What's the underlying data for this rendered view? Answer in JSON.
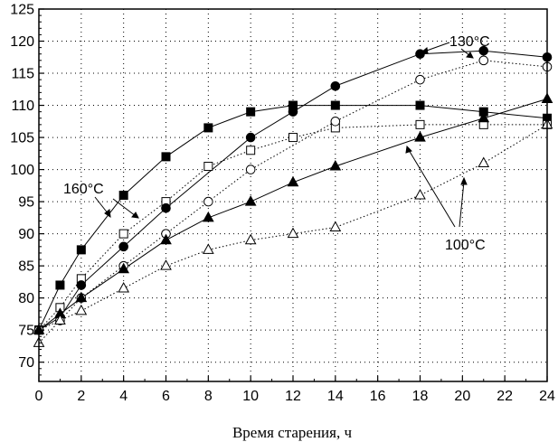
{
  "chart_data": {
    "type": "scatter",
    "title": "",
    "xlabel": "Время старения, ч",
    "ylabel": "",
    "xlim": [
      0,
      24
    ],
    "ylim": [
      67,
      125
    ],
    "x_ticks": [
      0,
      2,
      4,
      6,
      8,
      10,
      12,
      14,
      16,
      18,
      20,
      22,
      24
    ],
    "y_ticks": [
      70,
      75,
      80,
      85,
      90,
      95,
      100,
      105,
      110,
      115,
      120,
      125
    ],
    "grid": "dotted",
    "annotations": [
      "130°C",
      "160°C",
      "100°C"
    ],
    "series": [
      {
        "marker": "square-filled",
        "line": "solid",
        "x": [
          0,
          1,
          2,
          4,
          6,
          8,
          10,
          12,
          14,
          18,
          21,
          24
        ],
        "y": [
          75,
          82,
          87.5,
          96,
          102,
          106.5,
          109,
          110,
          110,
          110,
          109,
          108
        ]
      },
      {
        "marker": "square-open",
        "line": "dotted",
        "x": [
          0,
          1,
          2,
          4,
          6,
          8,
          10,
          12,
          14,
          18,
          21,
          24
        ],
        "y": [
          75,
          78.5,
          83,
          90,
          95,
          100.5,
          103,
          105,
          106.5,
          107,
          107,
          107
        ]
      },
      {
        "marker": "circle-filled",
        "line": "solid",
        "x": [
          0,
          1,
          2,
          4,
          6,
          10,
          12,
          14,
          18,
          21,
          24
        ],
        "y": [
          75,
          77,
          82,
          88,
          94,
          105,
          109,
          113,
          118,
          118.5,
          117.5
        ]
      },
      {
        "marker": "circle-open",
        "line": "dotted",
        "x": [
          0,
          1,
          2,
          4,
          6,
          8,
          10,
          14,
          18,
          21,
          24
        ],
        "y": [
          75,
          76.5,
          80,
          85,
          90,
          95,
          100,
          107.5,
          114,
          117,
          116
        ]
      },
      {
        "marker": "triangle-filled",
        "line": "solid",
        "x": [
          0,
          1,
          2,
          4,
          6,
          8,
          10,
          12,
          14,
          18,
          21,
          24
        ],
        "y": [
          75,
          77.5,
          80,
          84.5,
          89,
          92.5,
          95,
          98,
          100.5,
          105,
          108,
          111
        ]
      },
      {
        "marker": "triangle-open",
        "line": "dotted",
        "x": [
          0,
          1,
          2,
          4,
          6,
          8,
          10,
          12,
          14,
          18,
          21,
          24
        ],
        "y": [
          73,
          76.5,
          78,
          81.5,
          85,
          87.5,
          89,
          90,
          91,
          96,
          101,
          107
        ]
      }
    ]
  }
}
